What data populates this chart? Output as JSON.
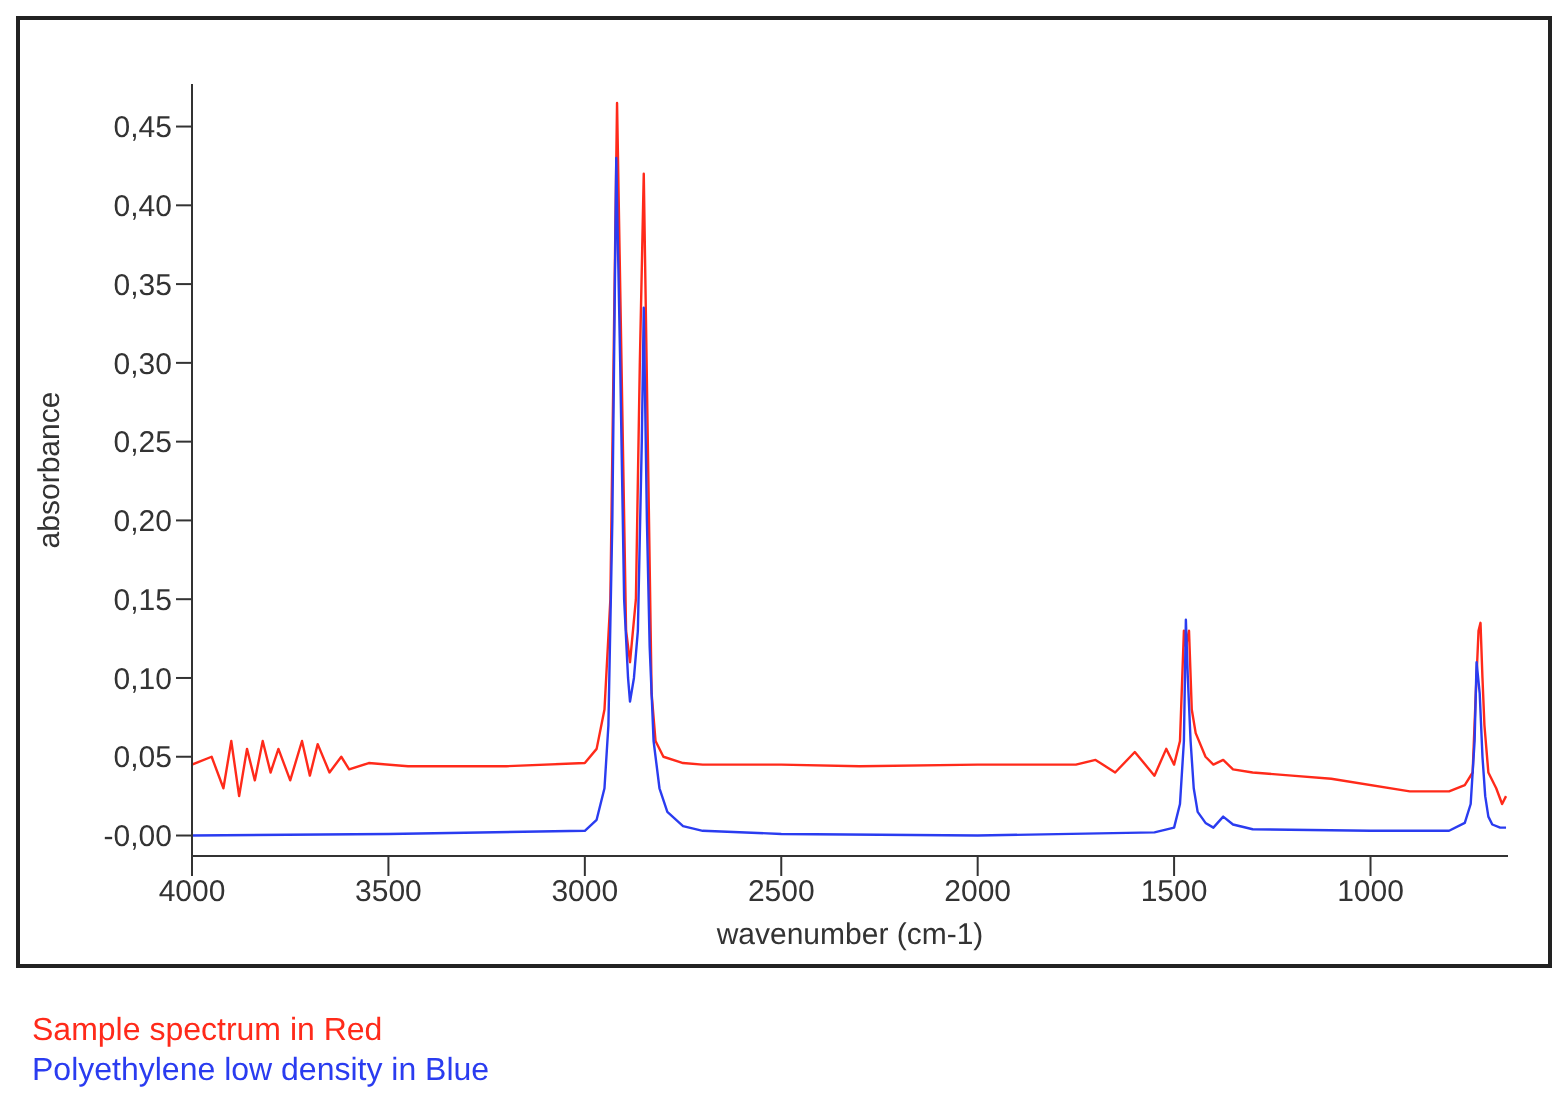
{
  "chart_data": {
    "type": "line",
    "xlabel": "wavenumber (cm-1)",
    "ylabel": "absorbance",
    "xlim": [
      4000,
      650
    ],
    "xticks": [
      4000,
      3500,
      3000,
      2500,
      2000,
      1500,
      1000
    ],
    "ylim": [
      -0.013,
      0.477
    ],
    "yticks": [
      {
        "value": 0,
        "label": "-0,00"
      },
      {
        "value": 0.05,
        "label": "0,05"
      },
      {
        "value": 0.1,
        "label": "0,10"
      },
      {
        "value": 0.15,
        "label": "0,15"
      },
      {
        "value": 0.2,
        "label": "0,20"
      },
      {
        "value": 0.25,
        "label": "0,25"
      },
      {
        "value": 0.3,
        "label": "0,30"
      },
      {
        "value": 0.35,
        "label": "0,35"
      },
      {
        "value": 0.4,
        "label": "0,40"
      },
      {
        "value": 0.45,
        "label": "0,45"
      }
    ],
    "grid": false,
    "legend": "bottom left",
    "marker": "none",
    "line_style": "solid",
    "series": [
      {
        "name": "Sample spectrum in Red",
        "color": "#ff2a1a",
        "x": [
          4000,
          3950,
          3920,
          3900,
          3880,
          3860,
          3840,
          3820,
          3800,
          3780,
          3750,
          3720,
          3700,
          3680,
          3650,
          3620,
          3600,
          3550,
          3450,
          3200,
          3000,
          2970,
          2950,
          2935,
          2918,
          2895,
          2885,
          2870,
          2860,
          2850,
          2830,
          2820,
          2800,
          2750,
          2700,
          2500,
          2300,
          2000,
          1750,
          1700,
          1650,
          1600,
          1550,
          1520,
          1500,
          1485,
          1475,
          1470,
          1462,
          1455,
          1445,
          1420,
          1400,
          1375,
          1350,
          1300,
          1200,
          1100,
          900,
          800,
          760,
          740,
          732,
          725,
          720,
          715,
          710,
          700,
          680,
          665,
          655
        ],
        "values": [
          0.045,
          0.05,
          0.03,
          0.06,
          0.025,
          0.055,
          0.035,
          0.06,
          0.04,
          0.055,
          0.035,
          0.06,
          0.038,
          0.058,
          0.04,
          0.05,
          0.042,
          0.046,
          0.044,
          0.044,
          0.046,
          0.055,
          0.08,
          0.15,
          0.465,
          0.13,
          0.11,
          0.15,
          0.3,
          0.42,
          0.09,
          0.06,
          0.05,
          0.046,
          0.045,
          0.045,
          0.044,
          0.045,
          0.045,
          0.048,
          0.04,
          0.053,
          0.038,
          0.055,
          0.045,
          0.06,
          0.13,
          0.12,
          0.13,
          0.08,
          0.065,
          0.05,
          0.045,
          0.048,
          0.042,
          0.04,
          0.038,
          0.036,
          0.028,
          0.028,
          0.032,
          0.04,
          0.09,
          0.13,
          0.135,
          0.1,
          0.07,
          0.04,
          0.03,
          0.02,
          0.025
        ]
      },
      {
        "name": "Polyethylene low density in Blue",
        "color": "#2a3cf0",
        "x": [
          4000,
          3500,
          3000,
          2970,
          2950,
          2940,
          2930,
          2920,
          2910,
          2900,
          2890,
          2885,
          2875,
          2865,
          2855,
          2850,
          2842,
          2835,
          2825,
          2810,
          2790,
          2750,
          2700,
          2500,
          2000,
          1550,
          1500,
          1485,
          1475,
          1470,
          1465,
          1458,
          1450,
          1440,
          1420,
          1400,
          1375,
          1350,
          1300,
          1000,
          800,
          760,
          745,
          735,
          730,
          722,
          715,
          708,
          700,
          690,
          670,
          655
        ],
        "values": [
          0.0,
          0.001,
          0.003,
          0.01,
          0.03,
          0.07,
          0.2,
          0.43,
          0.3,
          0.15,
          0.1,
          0.085,
          0.1,
          0.13,
          0.25,
          0.335,
          0.2,
          0.12,
          0.06,
          0.03,
          0.015,
          0.006,
          0.003,
          0.001,
          0.0,
          0.002,
          0.005,
          0.02,
          0.06,
          0.137,
          0.1,
          0.06,
          0.03,
          0.015,
          0.008,
          0.005,
          0.012,
          0.007,
          0.004,
          0.003,
          0.003,
          0.008,
          0.02,
          0.06,
          0.11,
          0.09,
          0.05,
          0.025,
          0.012,
          0.007,
          0.005,
          0.005
        ]
      }
    ]
  }
}
